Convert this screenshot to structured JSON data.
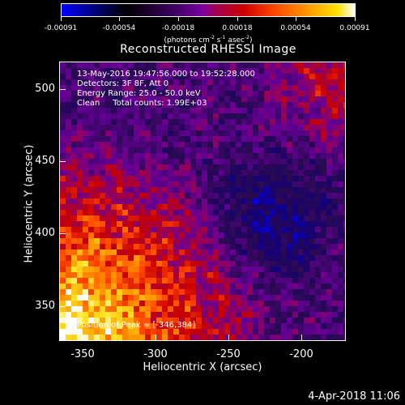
{
  "colorbar": {
    "ticks": [
      "-0.00091",
      "-0.00054",
      "-0.00018",
      "0.00018",
      "0.00054",
      "0.00091"
    ],
    "units_parts": [
      "(photons cm",
      "-2",
      " s",
      "-1",
      " asec",
      "-2",
      ")"
    ]
  },
  "title": "Reconstructed RHESSI Image",
  "info": {
    "line1": "13-May-2016 19:47:56.000 to 19:52:28.000",
    "line2": "Detectors: 3F 8F, Att 0",
    "line3": "Energy Range: 25.0 - 50.0 keV",
    "line4": "Clean     Total counts: 1.99E+03"
  },
  "peak_label": "Position of Peak = [-346,384]",
  "axes": {
    "xlabel": "Heliocentric X (arcsec)",
    "ylabel": "Heliocentric Y (arcsec)",
    "xticks": [
      "-350",
      "-300",
      "-250",
      "-200"
    ],
    "yticks": [
      "500",
      "450",
      "400",
      "350"
    ],
    "xlim": [
      -366,
      -174
    ],
    "ylim": [
      322,
      520
    ]
  },
  "timestamp": "4-Apr-2018 11:06",
  "colors": {
    "background": "#000000",
    "foreground": "#ffffff",
    "cmap_low": "#0000ff",
    "cmap_mid": "#7a00a0",
    "cmap_high": "#ffffff"
  }
}
